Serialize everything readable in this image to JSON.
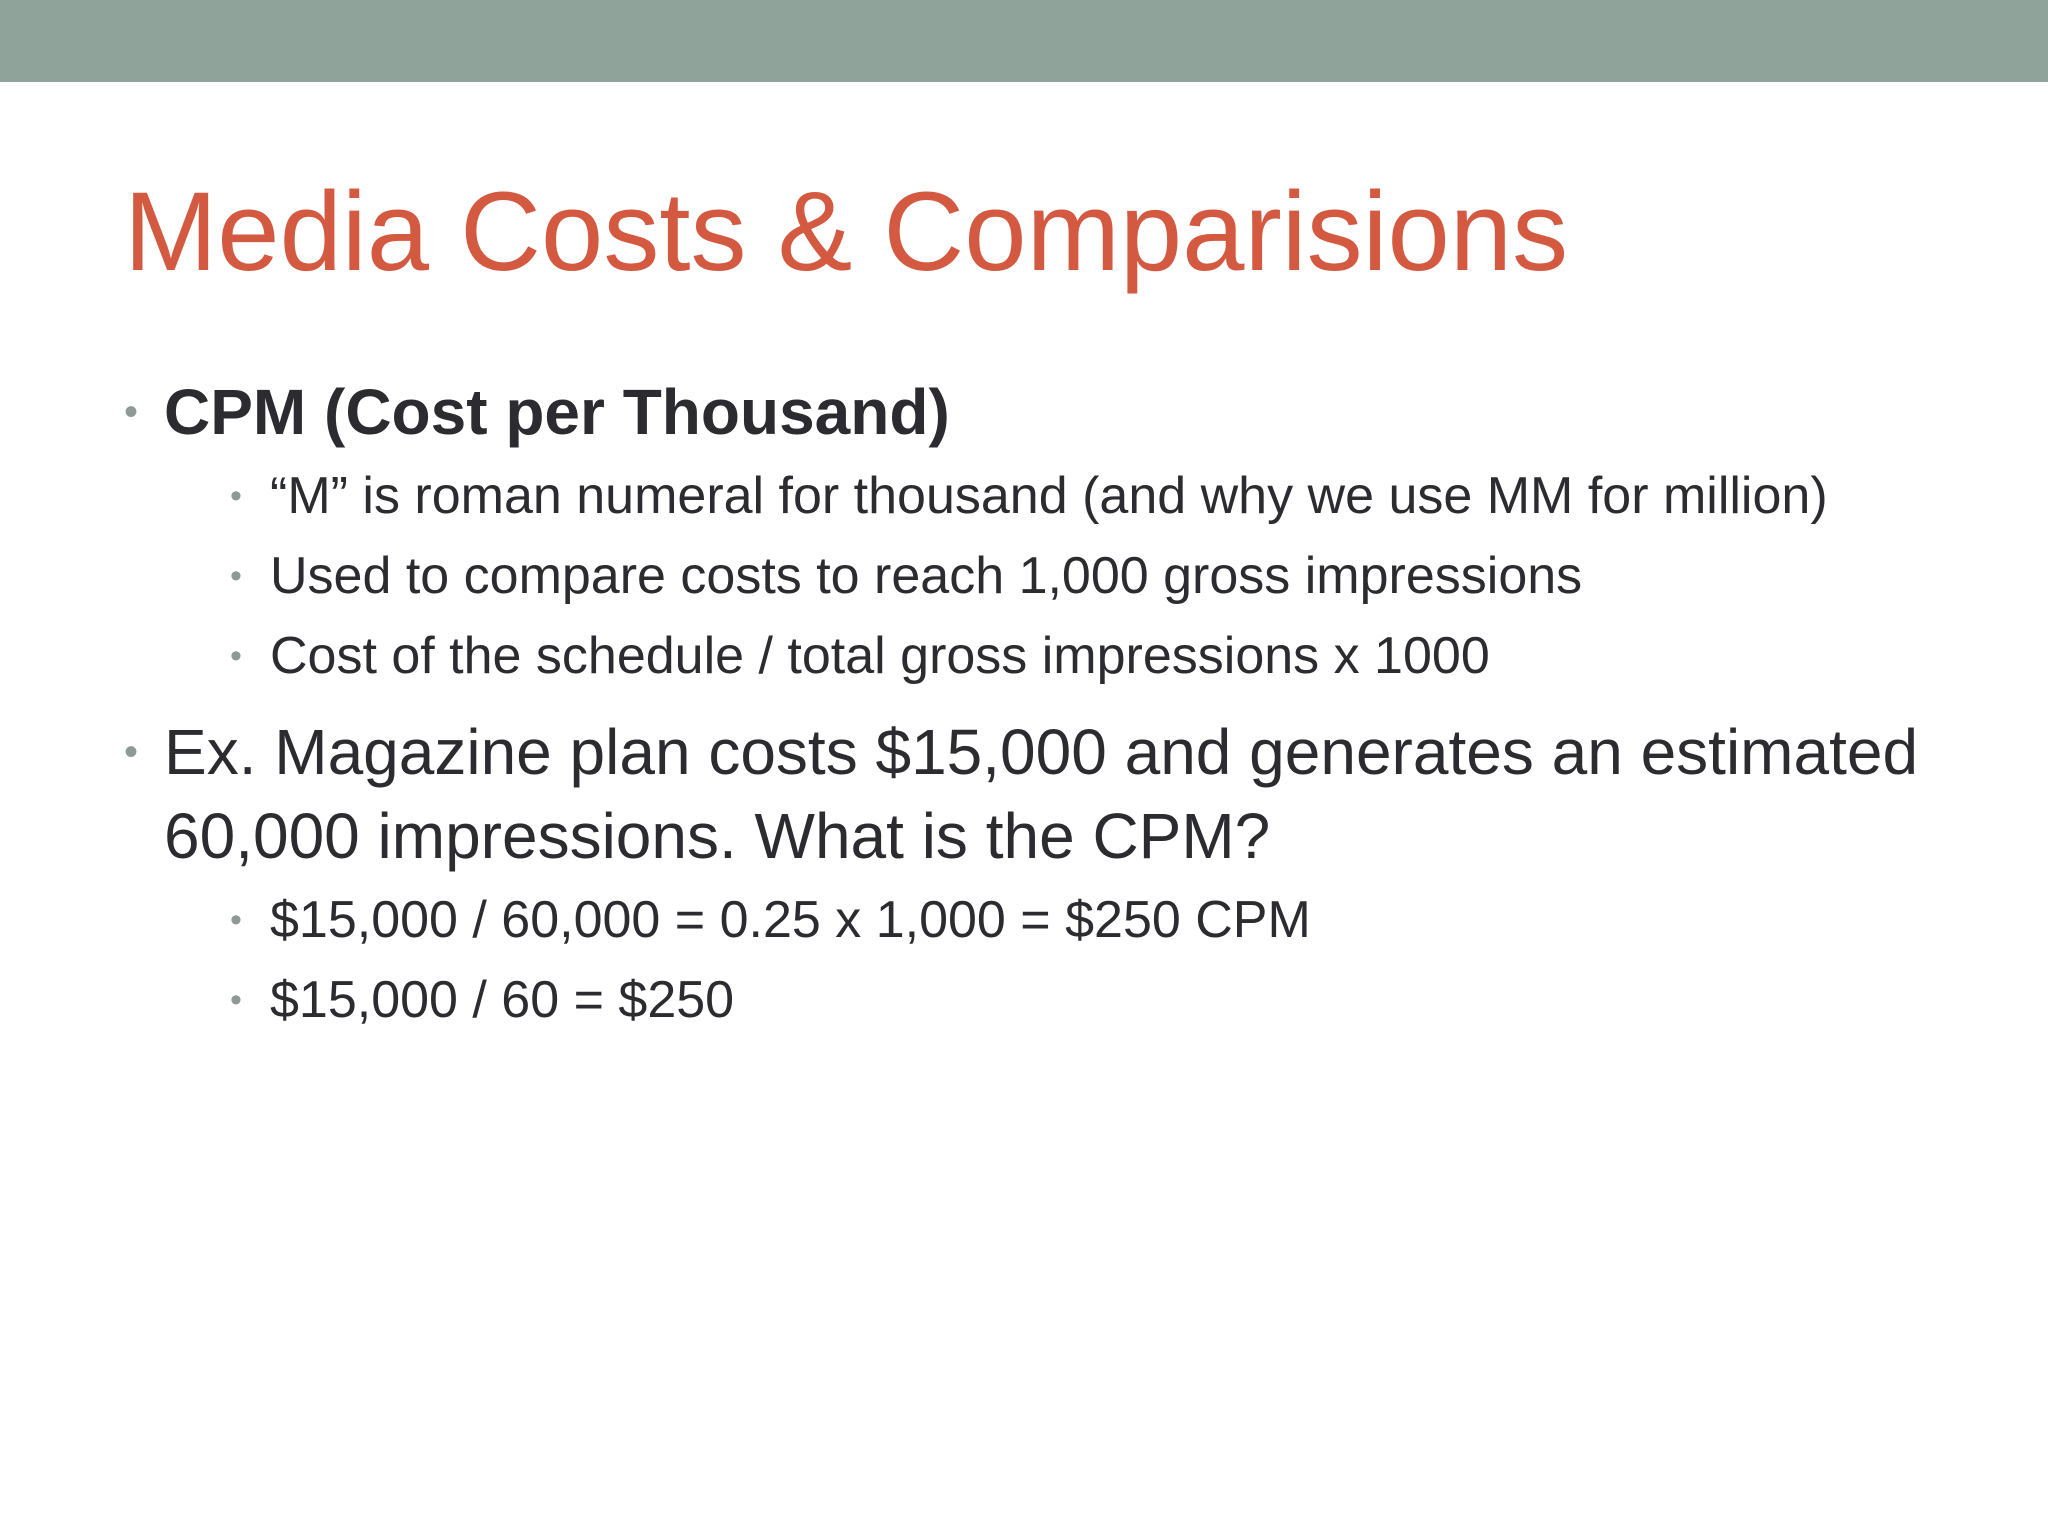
{
  "slide": {
    "title": "Media Costs & Comparisions",
    "bullet_glyph": "•",
    "points": [
      {
        "text": "CPM (Cost per Thousand)",
        "bold": true,
        "subpoints": [
          "“M” is roman numeral for thousand (and why we use MM for million)",
          "Used to compare costs to reach 1,000 gross impressions",
          "Cost of the schedule / total gross impressions x 1000"
        ]
      },
      {
        "text": "Ex. Magazine plan costs $15,000 and generates an estimated 60,000 impressions. What is the CPM?",
        "bold": false,
        "subpoints": [
          "$15,000 / 60,000 = 0.25 x 1,000 = $250 CPM",
          "$15,000 / 60 = $250"
        ]
      }
    ]
  },
  "colors": {
    "top_bar": "#90a39a",
    "title": "#d35a40",
    "body_text": "#2c2c30",
    "bullet": "#8f9a96"
  }
}
